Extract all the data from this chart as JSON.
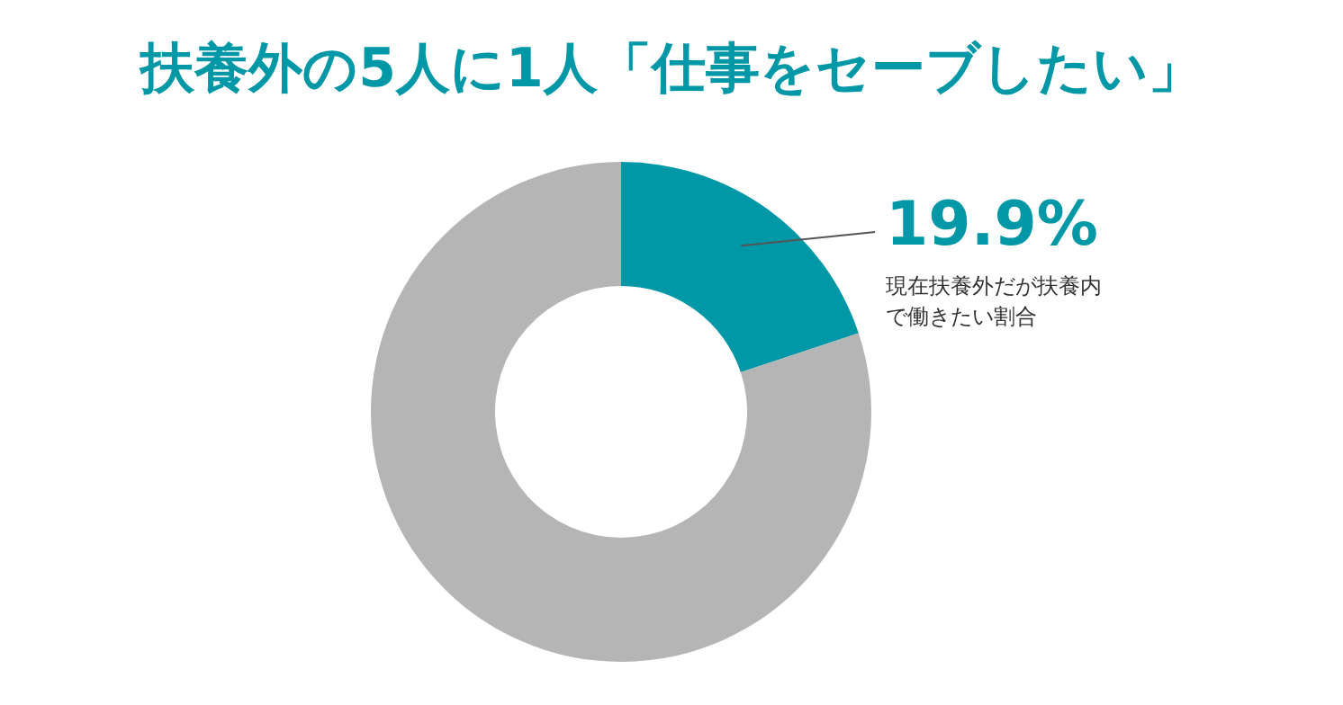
{
  "chart_data": {
    "type": "donut",
    "title": "扶養外の5人に1人「仕事をセーブしたい」",
    "categories": [
      "現在扶養外だが扶養内で働きたい割合",
      null
    ],
    "values": [
      19.9,
      80.1
    ],
    "value_labels": [
      "19.9%",
      null
    ],
    "colors": [
      "#0097a7",
      "#b5b5b5"
    ],
    "legend": false
  }
}
